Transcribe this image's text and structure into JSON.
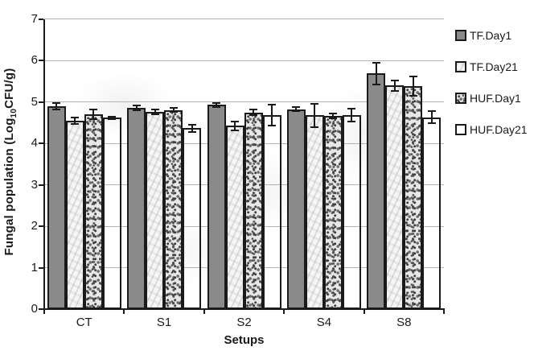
{
  "colors": {
    "bar_gray": "#8a8a8a",
    "bar_border": "#1a1a1a",
    "gridline": "#b3b3b3",
    "axis": "#1a1a1a",
    "text": "#1a1a1a"
  },
  "chart_data": {
    "type": "bar",
    "title": "",
    "xlabel": "Setups",
    "ylabel": "Fungal population (Log10CFU/g)",
    "ylabel_parts": {
      "prefix": "Fungal population (Log",
      "sub": "10",
      "suffix": "CFU/g)"
    },
    "ylim": [
      0,
      7
    ],
    "ytick_interval": 1,
    "yticks": [
      0,
      1,
      2,
      3,
      4,
      5,
      6,
      7
    ],
    "grid": true,
    "legend_position": "right",
    "categories": [
      "CT",
      "S1",
      "S2",
      "S4",
      "S8"
    ],
    "series": [
      {
        "name": "TF.Day1",
        "style": "solid-gray",
        "values": [
          4.9,
          4.85,
          4.93,
          4.82,
          5.68
        ],
        "errors": [
          0.08,
          0.06,
          0.05,
          0.05,
          0.26
        ]
      },
      {
        "name": "TF.Day21",
        "style": "light-texture",
        "values": [
          4.55,
          4.76,
          4.42,
          4.67,
          5.39
        ],
        "errors": [
          0.08,
          0.06,
          0.1,
          0.29,
          0.13
        ]
      },
      {
        "name": "HUF.Day1",
        "style": "speckled",
        "values": [
          4.7,
          4.8,
          4.74,
          4.66,
          5.38
        ],
        "errors": [
          0.12,
          0.05,
          0.07,
          0.06,
          0.24
        ]
      },
      {
        "name": "HUF.Day21",
        "style": "white",
        "values": [
          4.62,
          4.36,
          4.68,
          4.68,
          4.63
        ],
        "errors": [
          0.03,
          0.08,
          0.26,
          0.15,
          0.15
        ]
      }
    ]
  }
}
